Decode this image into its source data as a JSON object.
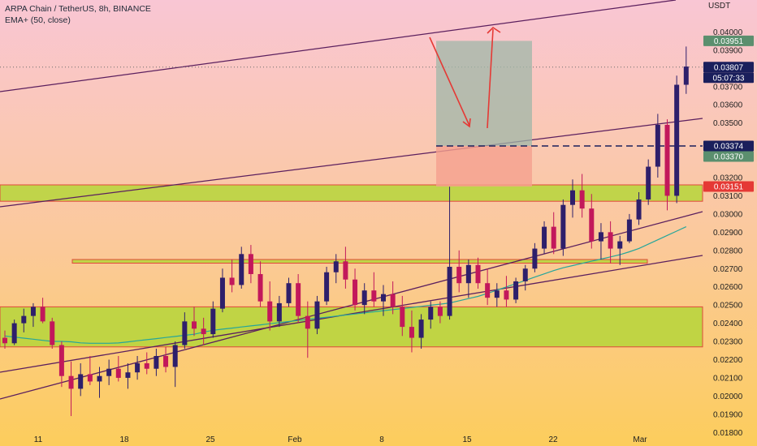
{
  "legend": {
    "symbol_line": "ARPA Chain / TetherUS, 8h, BINANCE",
    "indicator_line": "EMA+ (50, close)"
  },
  "price_scale": {
    "currency": "USDT",
    "ticks": [
      "0.04000",
      "0.03900",
      "0.03700",
      "0.03600",
      "0.03500",
      "0.03200",
      "0.03100",
      "0.03000",
      "0.02900",
      "0.02800",
      "0.02700",
      "0.02600",
      "0.02500",
      "0.02400",
      "0.02300",
      "0.02200",
      "0.02100",
      "0.02000",
      "0.01900",
      "0.01800"
    ]
  },
  "price_tags": {
    "target": "0.03951",
    "last_price": "0.03807",
    "countdown": "05:07:33",
    "entry": "0.03374",
    "entry_ref": "0.03370",
    "stop": "0.03151"
  },
  "time_scale": {
    "labels": [
      "11",
      "18",
      "25",
      "Feb",
      "8",
      "15",
      "22",
      "Mar"
    ]
  },
  "colors": {
    "bull": "#2e1f6b",
    "bear": "#c2185b",
    "ema": "#26a69a",
    "zone_fill": "#b5d63a",
    "zone_border": "#e0483b",
    "trendline": "#5b1f5e",
    "profit_box": "#9fb7a8",
    "loss_box": "#f5a08e",
    "tag_green": "#5b8f6e",
    "tag_navy": "#1a1f5c",
    "tag_red": "#e53935"
  },
  "chart_data": {
    "type": "candlestick",
    "title": "ARPA Chain / TetherUS, 8h, BINANCE",
    "timeframe": "8h",
    "xlabel": "",
    "ylabel": "USDT",
    "ylim": [
      0.0173,
      0.0414
    ],
    "x_ticks": [
      "11",
      "18",
      "25",
      "Feb",
      "8",
      "15",
      "22",
      "Mar"
    ],
    "series": [
      {
        "name": "EMA+ (50, close)",
        "values": [
          0.0233,
          0.0232,
          0.0231,
          0.023,
          0.023,
          0.0229,
          0.0229,
          0.0229,
          0.023,
          0.0231,
          0.0232,
          0.0233,
          0.0234,
          0.0236,
          0.0237,
          0.0238,
          0.0239,
          0.024,
          0.0241,
          0.0242,
          0.0243,
          0.0244,
          0.0245,
          0.0246,
          0.0247,
          0.0248,
          0.0249,
          0.025,
          0.0251,
          0.0253,
          0.0255,
          0.0258,
          0.0261,
          0.0264,
          0.0267,
          0.027,
          0.0272,
          0.0274,
          0.0276,
          0.0278,
          0.0281,
          0.0285,
          0.0289,
          0.0293
        ]
      }
    ],
    "candles": [
      [
        0.0232,
        0.0236,
        0.0226,
        0.0229
      ],
      [
        0.0229,
        0.0242,
        0.0228,
        0.024
      ],
      [
        0.024,
        0.0248,
        0.0235,
        0.0244
      ],
      [
        0.0244,
        0.0251,
        0.0238,
        0.0249
      ],
      [
        0.0249,
        0.0254,
        0.024,
        0.0241
      ],
      [
        0.0241,
        0.0243,
        0.0226,
        0.0228
      ],
      [
        0.0228,
        0.023,
        0.0205,
        0.0211
      ],
      [
        0.0211,
        0.0219,
        0.0189,
        0.0204
      ],
      [
        0.0204,
        0.0218,
        0.02,
        0.0212
      ],
      [
        0.0212,
        0.0222,
        0.0206,
        0.0208
      ],
      [
        0.0208,
        0.0216,
        0.0199,
        0.0211
      ],
      [
        0.0211,
        0.022,
        0.0206,
        0.0215
      ],
      [
        0.0215,
        0.0222,
        0.0208,
        0.021
      ],
      [
        0.021,
        0.0218,
        0.0204,
        0.0213
      ],
      [
        0.0213,
        0.0222,
        0.0209,
        0.0218
      ],
      [
        0.0218,
        0.0224,
        0.0212,
        0.0215
      ],
      [
        0.0215,
        0.0226,
        0.0211,
        0.0222
      ],
      [
        0.0222,
        0.0227,
        0.0213,
        0.0216
      ],
      [
        0.0216,
        0.023,
        0.0205,
        0.0228
      ],
      [
        0.0228,
        0.0246,
        0.0226,
        0.0241
      ],
      [
        0.0241,
        0.0249,
        0.0233,
        0.0237
      ],
      [
        0.0237,
        0.0243,
        0.0228,
        0.0234
      ],
      [
        0.0234,
        0.0252,
        0.0232,
        0.0248
      ],
      [
        0.0248,
        0.027,
        0.0246,
        0.0265
      ],
      [
        0.0265,
        0.0275,
        0.0257,
        0.0261
      ],
      [
        0.0261,
        0.0282,
        0.0259,
        0.0278
      ],
      [
        0.0278,
        0.0283,
        0.0262,
        0.0267
      ],
      [
        0.0267,
        0.0274,
        0.0249,
        0.0252
      ],
      [
        0.0252,
        0.0263,
        0.0236,
        0.0241
      ],
      [
        0.0241,
        0.0255,
        0.0238,
        0.0251
      ],
      [
        0.0251,
        0.0265,
        0.0249,
        0.0262
      ],
      [
        0.0262,
        0.0267,
        0.024,
        0.0244
      ],
      [
        0.0244,
        0.0252,
        0.0221,
        0.0237
      ],
      [
        0.0237,
        0.0255,
        0.0234,
        0.0252
      ],
      [
        0.0252,
        0.0271,
        0.025,
        0.0268
      ],
      [
        0.0268,
        0.0278,
        0.0262,
        0.0274
      ],
      [
        0.0274,
        0.0282,
        0.0259,
        0.0264
      ],
      [
        0.0264,
        0.027,
        0.0247,
        0.025
      ],
      [
        0.025,
        0.0262,
        0.0245,
        0.0258
      ],
      [
        0.0258,
        0.0268,
        0.0249,
        0.0252
      ],
      [
        0.0252,
        0.0261,
        0.0244,
        0.0256
      ],
      [
        0.0256,
        0.0263,
        0.0245,
        0.0249
      ],
      [
        0.0249,
        0.0255,
        0.0233,
        0.0238
      ],
      [
        0.0238,
        0.0247,
        0.0224,
        0.0232
      ],
      [
        0.0232,
        0.0245,
        0.0226,
        0.0242
      ],
      [
        0.0242,
        0.0252,
        0.0237,
        0.0249
      ],
      [
        0.0249,
        0.0252,
        0.024,
        0.0244
      ],
      [
        0.0244,
        0.0315,
        0.0242,
        0.0271
      ],
      [
        0.0271,
        0.028,
        0.0257,
        0.0262
      ],
      [
        0.0262,
        0.0275,
        0.0254,
        0.0272
      ],
      [
        0.0272,
        0.0276,
        0.0259,
        0.0262
      ],
      [
        0.0262,
        0.027,
        0.025,
        0.0254
      ],
      [
        0.0254,
        0.0262,
        0.0249,
        0.0258
      ],
      [
        0.0258,
        0.0266,
        0.0249,
        0.0253
      ],
      [
        0.0253,
        0.0265,
        0.0251,
        0.0263
      ],
      [
        0.0263,
        0.0272,
        0.0258,
        0.027
      ],
      [
        0.027,
        0.0284,
        0.0268,
        0.0281
      ],
      [
        0.0281,
        0.0296,
        0.0278,
        0.0293
      ],
      [
        0.0293,
        0.0301,
        0.0278,
        0.0281
      ],
      [
        0.0281,
        0.0308,
        0.0277,
        0.0305
      ],
      [
        0.0305,
        0.0319,
        0.0298,
        0.0313
      ],
      [
        0.0313,
        0.0322,
        0.0298,
        0.0303
      ],
      [
        0.0303,
        0.0311,
        0.0281,
        0.0285
      ],
      [
        0.0285,
        0.0295,
        0.0275,
        0.029
      ],
      [
        0.029,
        0.0296,
        0.0273,
        0.0281
      ],
      [
        0.0281,
        0.0288,
        0.0272,
        0.0285
      ],
      [
        0.0285,
        0.03,
        0.0284,
        0.0297
      ],
      [
        0.0297,
        0.0312,
        0.0294,
        0.0308
      ],
      [
        0.0308,
        0.033,
        0.0305,
        0.0326
      ],
      [
        0.0326,
        0.0355,
        0.032,
        0.0349
      ],
      [
        0.0349,
        0.0352,
        0.0302,
        0.031
      ],
      [
        0.031,
        0.0376,
        0.0306,
        0.0371
      ],
      [
        0.0371,
        0.0392,
        0.0366,
        0.0381
      ]
    ]
  }
}
